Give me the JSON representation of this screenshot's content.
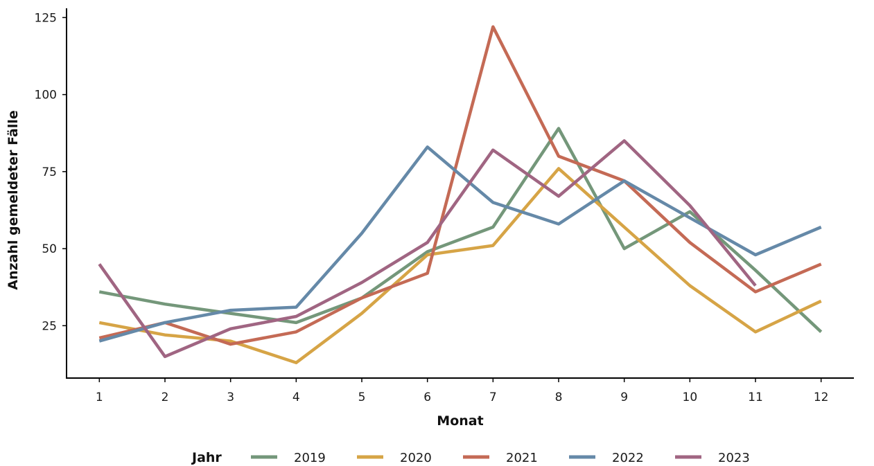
{
  "chart_data": {
    "type": "line",
    "xlabel": "Monat",
    "ylabel": "Anzahl gemeldeter Fälle",
    "x": [
      1,
      2,
      3,
      4,
      5,
      6,
      7,
      8,
      9,
      10,
      11,
      12
    ],
    "xlim": [
      0.5,
      12.5
    ],
    "ylim": [
      8,
      128
    ],
    "yticks": [
      25,
      50,
      75,
      100,
      125
    ],
    "grid": false,
    "legend": {
      "title": "Jahr",
      "position": "bottom"
    },
    "series": [
      {
        "name": "2019",
        "color": "#74977a",
        "values": [
          36,
          32,
          29,
          26,
          34,
          49,
          57,
          89,
          50,
          62,
          43,
          23
        ]
      },
      {
        "name": "2020",
        "color": "#d6a446",
        "values": [
          26,
          22,
          20,
          13,
          29,
          48,
          51,
          76,
          57,
          38,
          23,
          33
        ]
      },
      {
        "name": "2021",
        "color": "#c46a55",
        "values": [
          21,
          26,
          19,
          23,
          34,
          42,
          122,
          80,
          72,
          52,
          36,
          45
        ]
      },
      {
        "name": "2022",
        "color": "#6589a8",
        "values": [
          20,
          26,
          30,
          31,
          55,
          83,
          65,
          58,
          72,
          60,
          48,
          57
        ]
      },
      {
        "name": "2023",
        "color": "#a06582",
        "values": [
          45,
          15,
          24,
          28,
          39,
          52,
          82,
          67,
          85,
          64,
          38,
          null
        ]
      }
    ]
  }
}
